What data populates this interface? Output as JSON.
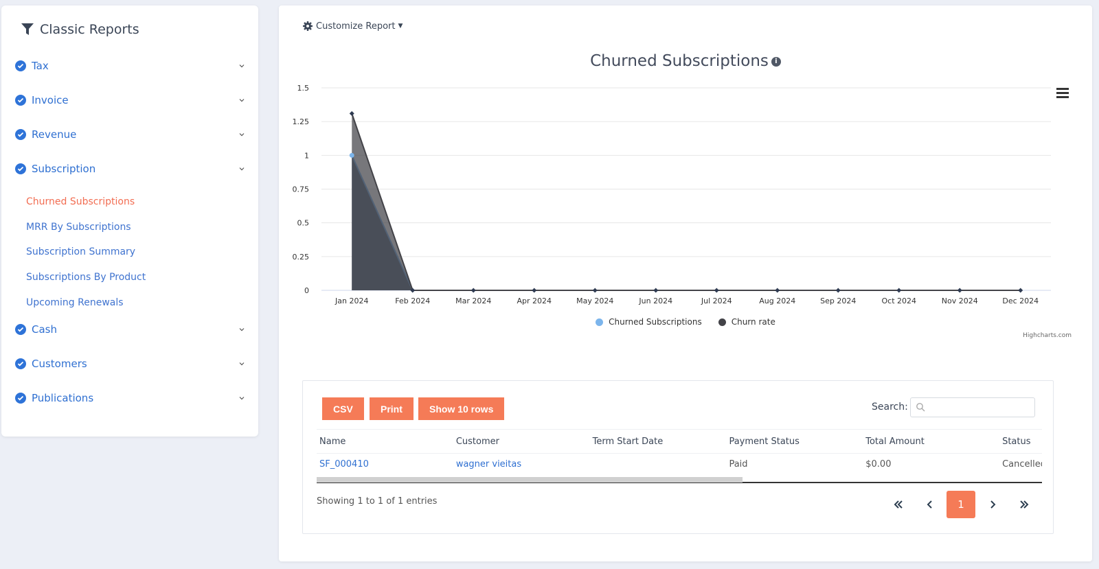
{
  "sidebar": {
    "title": "Classic Reports",
    "groups": [
      {
        "label": "Tax"
      },
      {
        "label": "Invoice"
      },
      {
        "label": "Revenue"
      },
      {
        "label": "Subscription"
      },
      {
        "label": "Cash"
      },
      {
        "label": "Customers"
      },
      {
        "label": "Publications"
      }
    ],
    "sub_items": [
      {
        "label": "Churned Subscriptions",
        "active": true
      },
      {
        "label": "MRR By Subscriptions"
      },
      {
        "label": "Subscription Summary"
      },
      {
        "label": "Subscriptions By Product"
      },
      {
        "label": "Upcoming Renewals"
      }
    ]
  },
  "main": {
    "customize_label": "Customize Report",
    "chart_title": "Churned Subscriptions"
  },
  "chart_data": {
    "type": "area",
    "title": "Churned Subscriptions",
    "categories": [
      "Jan 2024",
      "Feb 2024",
      "Mar 2024",
      "Apr 2024",
      "May 2024",
      "Jun 2024",
      "Jul 2024",
      "Aug 2024",
      "Sep 2024",
      "Oct 2024",
      "Nov 2024",
      "Dec 2024"
    ],
    "y_ticks": [
      "0",
      "0.25",
      "0.5",
      "0.75",
      "1",
      "1.25",
      "1.5"
    ],
    "ylim": [
      0,
      1.5
    ],
    "series": [
      {
        "name": "Churned Subscriptions",
        "color": "#7cb5ec",
        "values": [
          1,
          0,
          0,
          0,
          0,
          0,
          0,
          0,
          0,
          0,
          0,
          0
        ]
      },
      {
        "name": "Churn rate",
        "color": "#434348",
        "values": [
          1.31,
          0,
          0,
          0,
          0,
          0,
          0,
          0,
          0,
          0,
          0,
          0
        ]
      }
    ],
    "legend_position": "bottom",
    "credits": "Highcharts.com"
  },
  "table": {
    "buttons": {
      "csv": "CSV",
      "print": "Print",
      "rows": "Show 10 rows"
    },
    "search_label": "Search:",
    "columns": [
      "Name",
      "Customer",
      "Term Start Date",
      "Payment Status",
      "Total Amount",
      "Status"
    ],
    "rows": [
      {
        "name": "SF_000410",
        "customer": "wagner vieitas",
        "term_start": "",
        "payment_status": "Paid",
        "total": "$0.00",
        "status": "Cancelled"
      }
    ],
    "info": "Showing 1 to 1 of 1 entries",
    "current_page": "1"
  }
}
